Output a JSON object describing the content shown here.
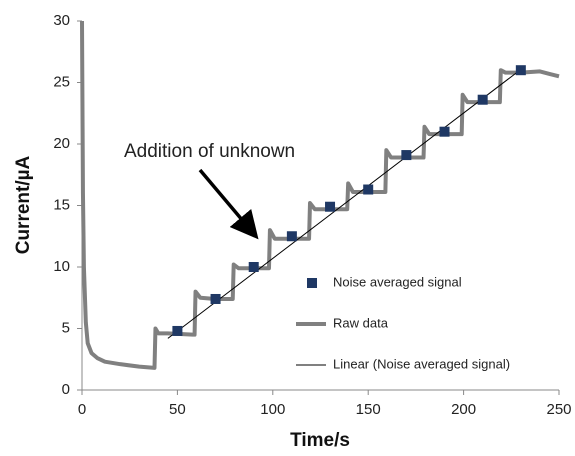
{
  "chart_data": {
    "type": "line",
    "x_label": "Time/s",
    "y_label": "Current/µA",
    "annotation": "Addition of unknown",
    "xlim": [
      0,
      250
    ],
    "ylim": [
      0,
      30
    ],
    "xticks": [
      0,
      50,
      100,
      150,
      200,
      250
    ],
    "yticks": [
      0,
      5,
      10,
      15,
      20,
      25,
      30
    ],
    "grid": false,
    "legend": "lower right",
    "series": [
      {
        "name": "Noise averaged signal",
        "type": "scatter",
        "color": "#1f3864",
        "x": [
          50,
          70,
          90,
          110,
          130,
          150,
          170,
          190,
          210,
          230
        ],
        "values": [
          4.8,
          7.4,
          10.0,
          12.5,
          14.9,
          16.3,
          19.1,
          21.0,
          23.6,
          26.0
        ]
      },
      {
        "name": "Raw data",
        "type": "line",
        "color": "#808080",
        "x": [
          0,
          0.5,
          1,
          2,
          3,
          5,
          8,
          12,
          20,
          30,
          38,
          38.5,
          40,
          45,
          58,
          59,
          59.5,
          62,
          70,
          78,
          79,
          79.5,
          82,
          90,
          97,
          98,
          98.5,
          101,
          110,
          118,
          119,
          119.5,
          122,
          130,
          138,
          139,
          139.5,
          142,
          150,
          158,
          159,
          159.5,
          162,
          170,
          178,
          179,
          179.5,
          182,
          190,
          198,
          199,
          199.5,
          202,
          210,
          218,
          219,
          219.5,
          222,
          230,
          240,
          245,
          250
        ],
        "values": [
          30,
          16,
          10,
          5.5,
          3.8,
          3.0,
          2.6,
          2.3,
          2.1,
          1.9,
          1.8,
          5.0,
          4.6,
          4.6,
          4.5,
          4.5,
          8.0,
          7.5,
          7.4,
          7.4,
          7.4,
          10.2,
          9.9,
          9.9,
          9.9,
          9.9,
          13.0,
          12.3,
          12.3,
          12.3,
          12.3,
          15.2,
          14.7,
          14.7,
          14.7,
          14.7,
          16.8,
          16.1,
          16.1,
          16.1,
          16.1,
          19.5,
          18.9,
          18.9,
          18.9,
          18.9,
          21.4,
          20.8,
          20.8,
          20.8,
          20.8,
          24.0,
          23.4,
          23.4,
          23.4,
          23.4,
          26.0,
          25.8,
          25.8,
          25.9,
          25.7,
          25.5
        ]
      },
      {
        "name": "Linear (Noise averaged signal)",
        "type": "line",
        "color": "#000000",
        "x": [
          45,
          232
        ],
        "values": [
          4.2,
          26.3
        ]
      }
    ]
  }
}
